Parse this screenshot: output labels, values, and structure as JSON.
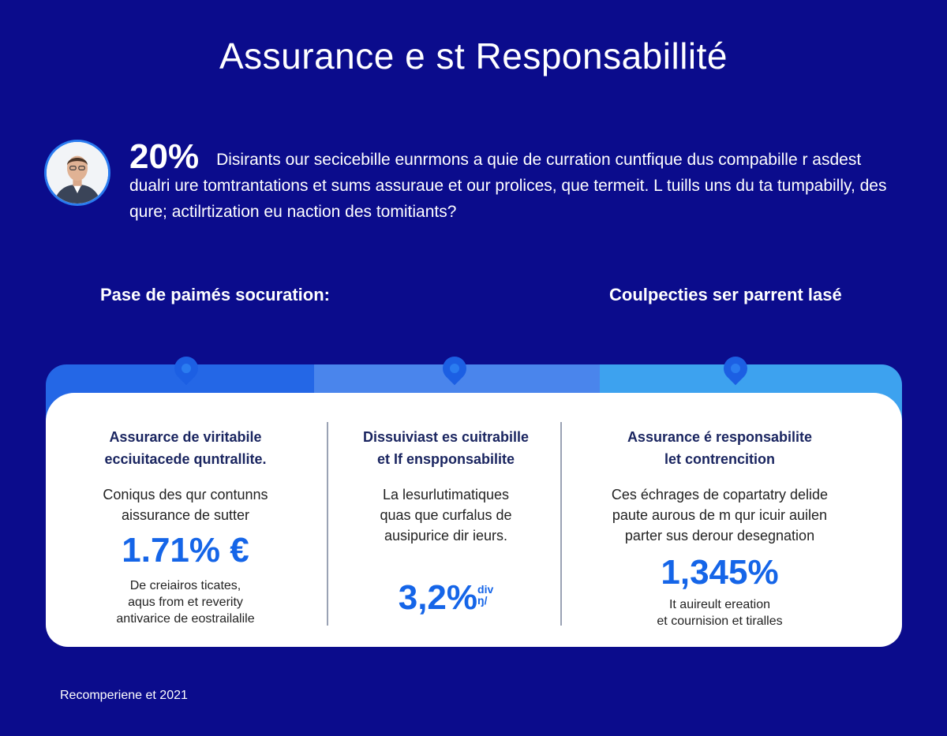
{
  "title": "Assurance e st Responsabillité",
  "intro": {
    "percent": "20%",
    "text": "Disirants our secicebille eunrmons a quie de curration cuntfique dus compabille r asdest dualri ure tomtrantations et sums assurаue et our prolices, que termeit. L tuills uns du ta tumpabilly, des qure; actilrtization eu naction des tomitiants?"
  },
  "subheadings": {
    "left": "Pase de paimés socuration:",
    "right": "Coulpecties ser parrent lasé"
  },
  "columns": [
    {
      "head_line1": "Assurarce de viritabile",
      "head_line2": "ecciuitacede quntrallite.",
      "body_line1": "Coniqus des quɾ contunns",
      "body_line2": "aissurance de sutter",
      "stat": "1.71% €",
      "note_line1": "De creiairos ticates,",
      "note_line2": "aqus from et reverity",
      "note_line3": "antivarice de eostrailalile"
    },
    {
      "head_line1": "Dissuiviast es cuitrabille",
      "head_line2": "et If enspponsabilite",
      "body_line1": "La lesurlutimatiques",
      "body_line2": "quas que curfalus de",
      "body_line3": "ausipurice dir ieurs.",
      "stat": "3,2%",
      "stat_suffix_1": "div",
      "stat_suffix_2": "ŋ/"
    },
    {
      "head_line1": "Assurance é responsabilite",
      "head_line2": "let contrencition",
      "body_line1": "Ces échrages de copartatry delide",
      "body_line2": "paute aurous de m qur icuir auilen",
      "body_line3": "parter sus derour desegnation",
      "stat": "1,345%",
      "note_line1": "It auireult ereation",
      "note_line2": "et cournision et tiralles"
    }
  ],
  "footer": "Recomperiene et 2021",
  "colors": {
    "background": "#0b0c8c",
    "accent": "#1565e8",
    "band_1": "#2467e6",
    "band_2": "#4a85ec",
    "band_3": "#3da2ef"
  }
}
